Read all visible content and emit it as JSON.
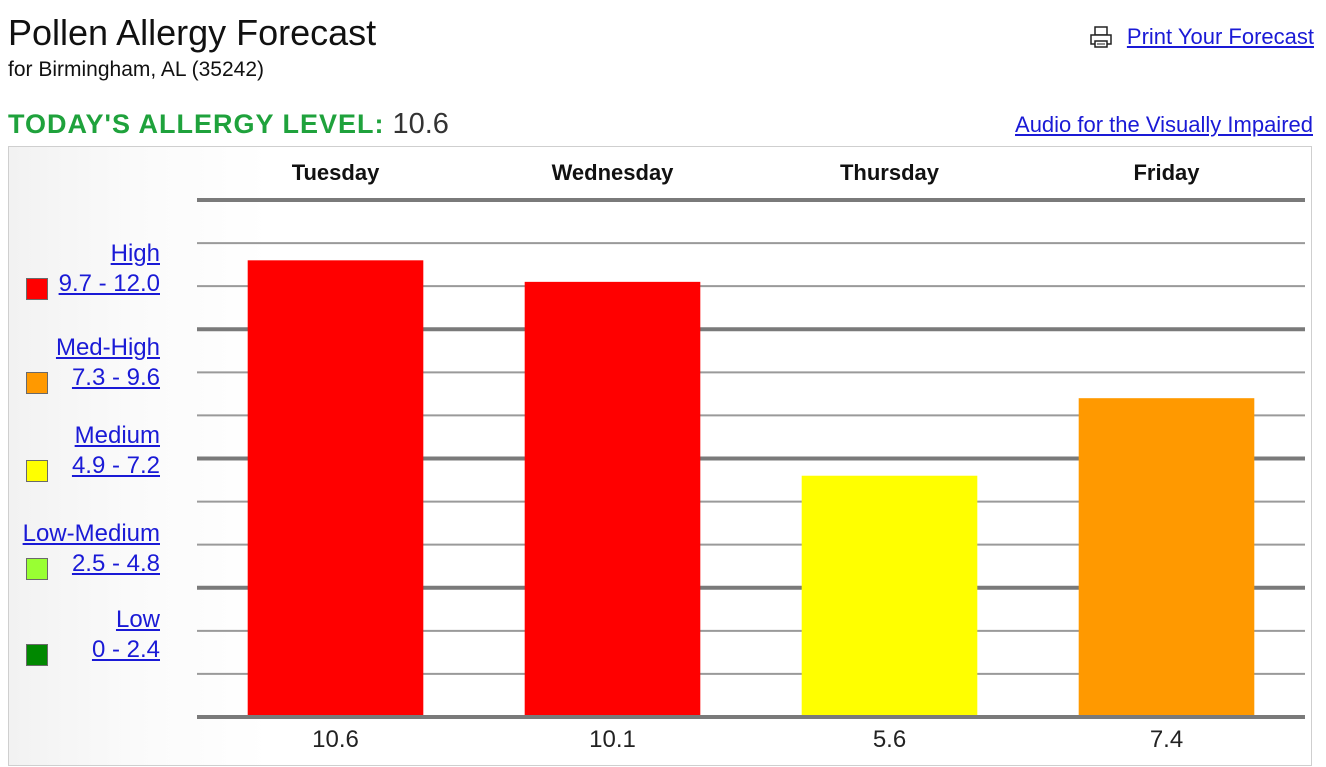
{
  "header": {
    "title": "Pollen Allergy Forecast",
    "subtitle": "for  Birmingham, AL (35242)",
    "print_link": "Print Your Forecast",
    "print_icon": "printer-icon"
  },
  "today": {
    "label": "TODAY'S ALLERGY LEVEL:",
    "value": "10.6"
  },
  "audio_link": "Audio for the Visually Impaired",
  "legend": [
    {
      "name": "High",
      "range": "9.7 - 12.0",
      "color": "#ff0000"
    },
    {
      "name": "Med-High",
      "range": "7.3 - 9.6",
      "color": "#ff9900"
    },
    {
      "name": "Medium",
      "range": "4.9 - 7.2",
      "color": "#ffff00"
    },
    {
      "name": "Low-Medium",
      "range": "2.5 - 4.8",
      "color": "#99ff33"
    },
    {
      "name": "Low",
      "range": "0 - 2.4",
      "color": "#008800"
    }
  ],
  "chart_data": {
    "type": "bar",
    "categories": [
      "Tuesday",
      "Wednesday",
      "Thursday",
      "Friday"
    ],
    "values": [
      10.6,
      10.1,
      5.6,
      7.4
    ],
    "value_labels": [
      "10.6",
      "10.1",
      "5.6",
      "7.4"
    ],
    "colors": [
      "#ff0000",
      "#ff0000",
      "#ffff00",
      "#ff9900"
    ],
    "ylim": [
      0,
      12
    ],
    "grid": true
  }
}
